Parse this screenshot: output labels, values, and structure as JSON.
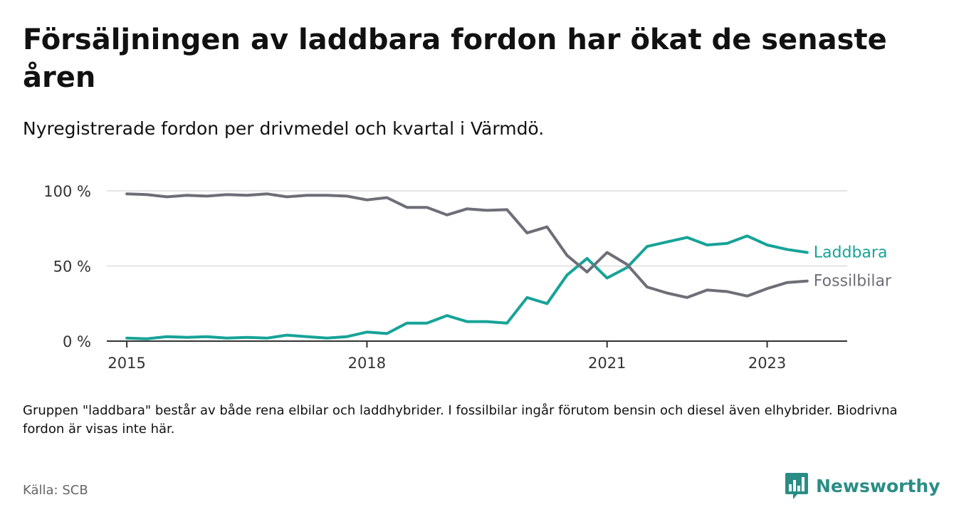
{
  "header": {
    "title": "Försäljningen av laddbara fordon har ökat de senaste åren",
    "subtitle": "Nyregistrerade fordon per drivmedel och kvartal i Värmdö."
  },
  "chart_data": {
    "type": "line",
    "title": "Försäljningen av laddbara fordon har ökat de senaste åren",
    "subtitle": "Nyregistrerade fordon per drivmedel och kvartal i Värmdö.",
    "xlabel": "",
    "ylabel": "",
    "x_start": 2015,
    "x_step": 0.25,
    "xlim": [
      2014.75,
      2024.0
    ],
    "ylim": [
      0,
      100
    ],
    "y_ticks": [
      {
        "value": 0,
        "label": "0 %"
      },
      {
        "value": 50,
        "label": "50 %"
      },
      {
        "value": 100,
        "label": "100 %"
      }
    ],
    "x_ticks": [
      {
        "value": 2015,
        "label": "2015"
      },
      {
        "value": 2018,
        "label": "2018"
      },
      {
        "value": 2021,
        "label": "2021"
      },
      {
        "value": 2023,
        "label": "2023"
      }
    ],
    "grid": true,
    "series": [
      {
        "name": "Laddbara",
        "label": "Laddbara",
        "color": "#17a398",
        "values": [
          2,
          1.5,
          3,
          2.5,
          3,
          2,
          2.5,
          2,
          4,
          3,
          2,
          3,
          6,
          5,
          12,
          12,
          17,
          13,
          13,
          12,
          29,
          25,
          44,
          55,
          42,
          49,
          63,
          66,
          69,
          64,
          65,
          70,
          64,
          61,
          59
        ]
      },
      {
        "name": "Fossilbilar",
        "label": "Fossilbilar",
        "color": "#6e6e78",
        "values": [
          98,
          97.5,
          96,
          97,
          96.5,
          97.5,
          97,
          98,
          96,
          97,
          97,
          96.5,
          94,
          95.5,
          89,
          89,
          84,
          88,
          87,
          87.5,
          72,
          76,
          57,
          46,
          59,
          51,
          36,
          32,
          29,
          34,
          33,
          30,
          35,
          39,
          40
        ]
      }
    ],
    "legend": "end-of-line labels"
  },
  "footer": {
    "note": "Gruppen \"laddbara\" består av både rena elbilar och laddhybrider. I fossilbilar ingår förutom bensin och diesel även elhybrider. Biodrivna fordon är visas inte här.",
    "source": "Källa: SCB",
    "brand": "Newsworthy",
    "brand_color": "#2a8d85"
  }
}
